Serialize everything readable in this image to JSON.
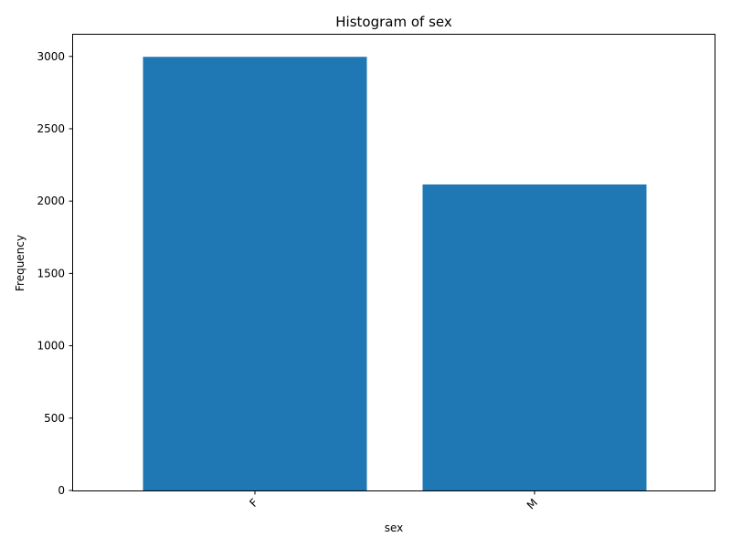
{
  "chart_data": {
    "type": "bar",
    "title": "Histogram of sex",
    "xlabel": "sex",
    "ylabel": "Frequency",
    "categories": [
      "F",
      "M"
    ],
    "values": [
      2997,
      2115
    ],
    "ylim": [
      0,
      3150
    ],
    "yticks": [
      0,
      500,
      1000,
      1500,
      2000,
      2500,
      3000
    ],
    "grid": false,
    "bar_color": "#1f77b4",
    "x_tick_rotation_deg": 45
  }
}
